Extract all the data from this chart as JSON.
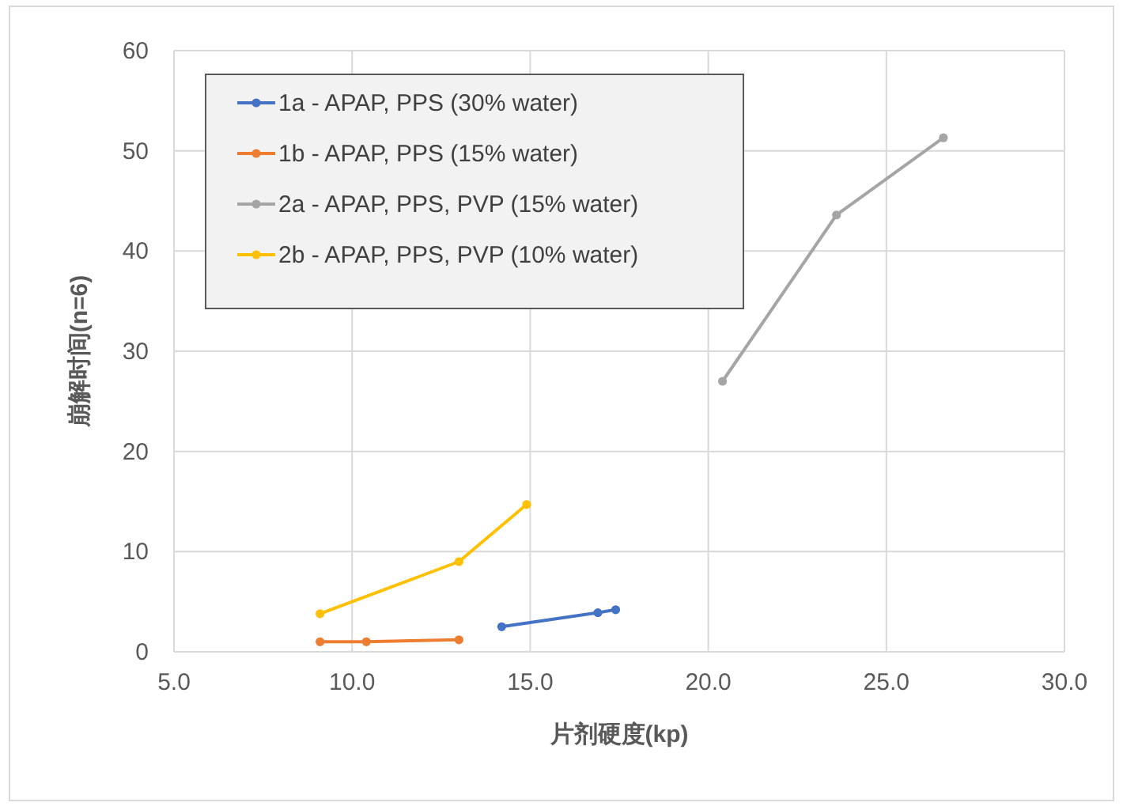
{
  "chart_data": {
    "type": "line",
    "xlabel": "片剂硬度(kp)",
    "ylabel": "崩解时间(n=6)",
    "xlim": [
      5,
      30
    ],
    "ylim": [
      0,
      60
    ],
    "xticks": [
      {
        "value": 5,
        "label": "5.0"
      },
      {
        "value": 10,
        "label": "10.0"
      },
      {
        "value": 15,
        "label": "15.0"
      },
      {
        "value": 20,
        "label": "20.0"
      },
      {
        "value": 25,
        "label": "25.0"
      },
      {
        "value": 30,
        "label": "30.0"
      }
    ],
    "yticks": [
      0,
      10,
      20,
      30,
      40,
      50,
      60
    ],
    "grid": true,
    "legend": "top left",
    "marker": "circle",
    "series": [
      {
        "name": "1a - APAP, PPS  (30% water)",
        "color": "#4472c4",
        "x": [
          14.2,
          16.9,
          17.4
        ],
        "values": [
          2.5,
          3.9,
          4.2
        ]
      },
      {
        "name": "1b - APAP, PPS (15% water)",
        "color": "#ed7d31",
        "x": [
          9.1,
          10.4,
          13.0
        ],
        "values": [
          1.0,
          1.0,
          1.2
        ]
      },
      {
        "name": "2a - APAP, PPS, PVP (15% water)",
        "color": "#a5a5a5",
        "x": [
          20.4,
          23.6,
          26.6
        ],
        "values": [
          27.0,
          43.6,
          51.3
        ]
      },
      {
        "name": "2b - APAP, PPS, PVP (10% water)",
        "color": "#ffc000",
        "x": [
          9.1,
          13.0,
          14.9
        ],
        "values": [
          3.8,
          9.0,
          14.7
        ]
      }
    ]
  }
}
